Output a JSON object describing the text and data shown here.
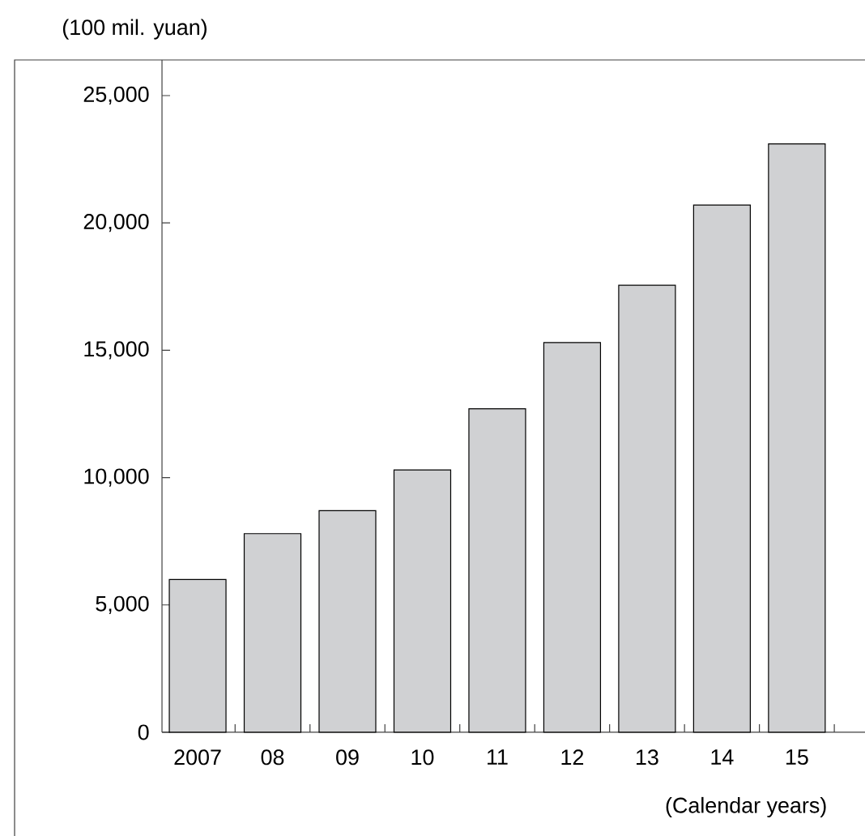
{
  "chart_data": {
    "type": "bar",
    "ylabel": "(100 mil. yuan)",
    "xlabel": "(Calendar years)",
    "categories": [
      "2007",
      "08",
      "09",
      "10",
      "11",
      "12",
      "13",
      "14",
      "15"
    ],
    "values": [
      6000,
      7800,
      8700,
      10300,
      12700,
      15300,
      17550,
      20700,
      23100
    ],
    "color": "#d0d1d3",
    "ylim": [
      0,
      26400
    ],
    "yticks": [
      {
        "value": 0,
        "label": "0"
      },
      {
        "value": 5000,
        "label": "5,000"
      },
      {
        "value": 10000,
        "label": "10,000"
      },
      {
        "value": 15000,
        "label": "15,000"
      },
      {
        "value": 20000,
        "label": "20,000"
      },
      {
        "value": 25000,
        "label": "25,000"
      }
    ],
    "grid": false
  }
}
